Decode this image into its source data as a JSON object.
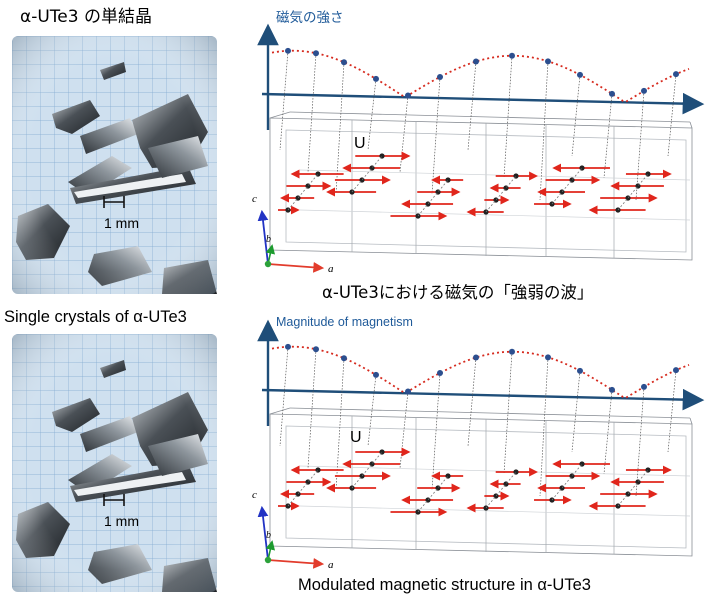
{
  "top_panel": {
    "photo_title": "α-UTe3 の単結晶",
    "scale_label": "1 mm",
    "axis_title": "磁気の強さ",
    "atom_label": "U",
    "caption": "α-UTe3における磁気の「強弱の波」",
    "axis_a": "a",
    "axis_b": "b",
    "axis_c": "c"
  },
  "bottom_panel": {
    "photo_title": "Single crystals of α-UTe3",
    "scale_label": "1 mm",
    "axis_title": "Magnitude of magnetism",
    "atom_label": "U",
    "caption": "Modulated magnetic structure in α-UTe3",
    "axis_a": "a",
    "axis_b": "b",
    "axis_c": "c"
  },
  "colors": {
    "axis": "#1f4e79",
    "wave": "#d62a1e",
    "marker": "#2c4f8f",
    "spin": "#e0261c",
    "grid": "#9ab9d8",
    "title_blue": "#1f5a99"
  },
  "icons": [
    "crystal-photo",
    "modulation-wave",
    "spin-arrows",
    "crystal-lattice",
    "axis-triad"
  ]
}
